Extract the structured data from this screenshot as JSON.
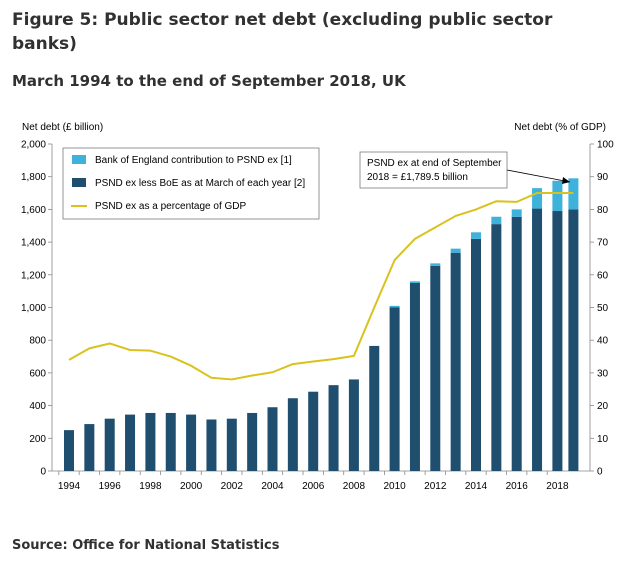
{
  "title": "Figure 5: Public sector net debt (excluding public sector banks)",
  "subtitle": "March 1994 to the end of September 2018, UK",
  "source": "Source: Office for National Statistics",
  "colors": {
    "bar_main": "#1f4e6e",
    "bar_boe": "#3fb2dc",
    "line": "#d9c21c",
    "axis": "#888888"
  },
  "chart_data": {
    "type": "bar",
    "left_axis_label": "Net debt (£ billion)",
    "right_axis_label": "Net debt (% of GDP)",
    "left_ylim": [
      0,
      2000
    ],
    "left_ticks": [
      "0",
      "200",
      "400",
      "600",
      "800",
      "1,000",
      "1,200",
      "1,400",
      "1,600",
      "1,800",
      "2,000"
    ],
    "right_ylim": [
      0,
      100
    ],
    "right_ticks": [
      "0",
      "10",
      "20",
      "30",
      "40",
      "50",
      "60",
      "70",
      "80",
      "90",
      "100"
    ],
    "x_tick_labels": [
      "1994",
      "1996",
      "1998",
      "2000",
      "2002",
      "2004",
      "2006",
      "2008",
      "2010",
      "2012",
      "2014",
      "2016",
      "2018"
    ],
    "categories": [
      "1994",
      "1995",
      "1996",
      "1997",
      "1998",
      "1999",
      "2000",
      "2001",
      "2002",
      "2003",
      "2004",
      "2005",
      "2006",
      "2007",
      "2008",
      "2009",
      "2010",
      "2011",
      "2012",
      "2013",
      "2014",
      "2015",
      "2016",
      "2017",
      "2018",
      "2018 Sep"
    ],
    "series": [
      {
        "name": "PSND ex less BoE as at March of each year [2]",
        "kind": "bar",
        "values": [
          250,
          287,
          320,
          345,
          355,
          355,
          345,
          315,
          320,
          355,
          390,
          445,
          485,
          525,
          560,
          765,
          1000,
          1150,
          1255,
          1335,
          1420,
          1510,
          1555,
          1605,
          1590,
          1600
        ]
      },
      {
        "name": "Bank of England contribution to PSND ex [1]",
        "kind": "bar",
        "values": [
          0,
          0,
          0,
          0,
          0,
          0,
          0,
          0,
          0,
          0,
          0,
          0,
          0,
          0,
          0,
          0,
          10,
          10,
          15,
          25,
          40,
          45,
          45,
          125,
          185,
          190
        ]
      },
      {
        "name": "PSND ex as a percentage of GDP",
        "kind": "line",
        "axis": "right",
        "values": [
          34,
          37.5,
          39,
          37,
          36.8,
          35,
          32.2,
          28.5,
          28,
          29.2,
          30.2,
          32.7,
          33.5,
          34.2,
          35.2,
          50,
          64.5,
          71,
          74.5,
          78,
          80,
          82.5,
          82.3,
          85,
          85,
          85
        ]
      }
    ],
    "annotation": {
      "lines": [
        "PSND ex at end of September",
        "2018 = £1,789.5 billion"
      ]
    },
    "legend_position": "top-left",
    "grid": false
  }
}
